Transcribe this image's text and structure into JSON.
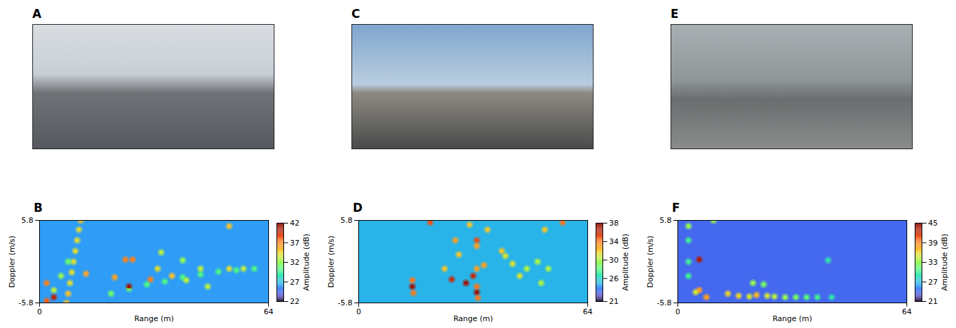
{
  "images": [
    {
      "title": "A"
    },
    {
      "title": "C"
    },
    {
      "title": "E"
    }
  ],
  "chart_data": [
    {
      "type": "heatmap",
      "title": "B",
      "xlabel": "Range (m)",
      "ylabel": "Doppler (m/s)",
      "xlim": [
        0,
        64
      ],
      "xticks": [
        0,
        64
      ],
      "ylim": [
        -5.8,
        5.8
      ],
      "yticks": [
        -5.8,
        5.8
      ],
      "colorbar": {
        "label": "Amplitude (dB)",
        "range": [
          22,
          42
        ],
        "ticks": [
          22,
          27,
          32,
          37,
          42
        ]
      },
      "background": 26,
      "peaks": [
        {
          "range": 11.5,
          "doppler": 5.8,
          "amplitude": 35
        },
        {
          "range": 11,
          "doppler": 4.5,
          "amplitude": 34
        },
        {
          "range": 10.5,
          "doppler": 3,
          "amplitude": 34
        },
        {
          "range": 10,
          "doppler": 1.5,
          "amplitude": 34
        },
        {
          "range": 9.5,
          "doppler": 0,
          "amplitude": 34
        },
        {
          "range": 9,
          "doppler": -1.5,
          "amplitude": 34
        },
        {
          "range": 8.5,
          "doppler": -3,
          "amplitude": 34
        },
        {
          "range": 8,
          "doppler": -4.5,
          "amplitude": 35
        },
        {
          "range": 7.5,
          "doppler": -5.8,
          "amplitude": 35
        },
        {
          "range": 2,
          "doppler": -5.5,
          "amplitude": 38
        },
        {
          "range": 4,
          "doppler": -4,
          "amplitude": 33
        },
        {
          "range": 6,
          "doppler": -2,
          "amplitude": 32
        },
        {
          "range": 8,
          "doppler": 0,
          "amplitude": 31
        },
        {
          "range": 20,
          "doppler": -4.5,
          "amplitude": 31
        },
        {
          "range": 25,
          "doppler": -3.8,
          "amplitude": 31
        },
        {
          "range": 30,
          "doppler": -3.2,
          "amplitude": 30
        },
        {
          "range": 35,
          "doppler": -2.8,
          "amplitude": 30
        },
        {
          "range": 40,
          "doppler": -2.2,
          "amplitude": 30
        },
        {
          "range": 45,
          "doppler": -1.8,
          "amplitude": 30
        },
        {
          "range": 50,
          "doppler": -1.4,
          "amplitude": 30
        },
        {
          "range": 55,
          "doppler": -1.2,
          "amplitude": 30
        },
        {
          "range": 60,
          "doppler": -1,
          "amplitude": 30
        },
        {
          "range": 25,
          "doppler": -3.5,
          "amplitude": 41
        },
        {
          "range": 31,
          "doppler": -2.5,
          "amplitude": 37
        },
        {
          "range": 37,
          "doppler": -2,
          "amplitude": 35
        },
        {
          "range": 45,
          "doppler": -1,
          "amplitude": 33
        },
        {
          "range": 53,
          "doppler": -1,
          "amplitude": 34
        },
        {
          "range": 57,
          "doppler": -1,
          "amplitude": 33
        },
        {
          "range": 26,
          "doppler": 0.3,
          "amplitude": 37
        },
        {
          "range": 24,
          "doppler": 0.3,
          "amplitude": 37
        },
        {
          "range": 34,
          "doppler": 1.3,
          "amplitude": 33
        },
        {
          "range": 21,
          "doppler": -2.2,
          "amplitude": 36
        },
        {
          "range": 13,
          "doppler": -1.7,
          "amplitude": 36
        },
        {
          "range": 53,
          "doppler": 5,
          "amplitude": 35
        },
        {
          "range": 4,
          "doppler": -5,
          "amplitude": 40
        },
        {
          "range": 2,
          "doppler": -3,
          "amplitude": 37
        },
        {
          "range": 33,
          "doppler": -1,
          "amplitude": 34
        },
        {
          "range": 40,
          "doppler": 0.2,
          "amplitude": 32
        },
        {
          "range": 47,
          "doppler": -3.5,
          "amplitude": 33
        },
        {
          "range": 41,
          "doppler": -2.6,
          "amplitude": 33
        }
      ]
    },
    {
      "type": "heatmap",
      "title": "D",
      "xlabel": "Range (m)",
      "ylabel": "Doppler (m/s)",
      "xlim": [
        0,
        64
      ],
      "xticks": [
        0,
        64
      ],
      "ylim": [
        -5.8,
        5.8
      ],
      "yticks": [
        -5.8,
        5.8
      ],
      "colorbar": {
        "label": "Amplitude (dB)",
        "range": [
          21,
          38
        ],
        "ticks": [
          21,
          26,
          30,
          34,
          38
        ]
      },
      "background": 25,
      "peaks": [
        {
          "range": 15,
          "doppler": -3.5,
          "amplitude": 37
        },
        {
          "range": 15,
          "doppler": -2.6,
          "amplitude": 34
        },
        {
          "range": 15.3,
          "doppler": -4.4,
          "amplitude": 34
        },
        {
          "range": 26,
          "doppler": -2.5,
          "amplitude": 36
        },
        {
          "range": 30,
          "doppler": -3,
          "amplitude": 37
        },
        {
          "range": 32,
          "doppler": -2,
          "amplitude": 36
        },
        {
          "range": 33,
          "doppler": -4.3,
          "amplitude": 37
        },
        {
          "range": 33,
          "doppler": -3.5,
          "amplitude": 34
        },
        {
          "range": 33.3,
          "doppler": -5.1,
          "amplitude": 34
        },
        {
          "range": 33,
          "doppler": 3,
          "amplitude": 35
        },
        {
          "range": 33,
          "doppler": 2.2,
          "amplitude": 33
        },
        {
          "range": 35,
          "doppler": -0.5,
          "amplitude": 33
        },
        {
          "range": 33,
          "doppler": -1,
          "amplitude": 33
        },
        {
          "range": 20,
          "doppler": 5.5,
          "amplitude": 35
        },
        {
          "range": 24,
          "doppler": -1,
          "amplitude": 32
        },
        {
          "range": 27,
          "doppler": 3,
          "amplitude": 33
        },
        {
          "range": 40,
          "doppler": 1.5,
          "amplitude": 32
        },
        {
          "range": 41,
          "doppler": 0.8,
          "amplitude": 31
        },
        {
          "range": 43,
          "doppler": -0.3,
          "amplitude": 31
        },
        {
          "range": 47,
          "doppler": -1,
          "amplitude": 30
        },
        {
          "range": 45,
          "doppler": -2,
          "amplitude": 31
        },
        {
          "range": 50,
          "doppler": 0,
          "amplitude": 30
        },
        {
          "range": 51,
          "doppler": -3,
          "amplitude": 30
        },
        {
          "range": 52,
          "doppler": 4.5,
          "amplitude": 32
        },
        {
          "range": 57,
          "doppler": 5.5,
          "amplitude": 34
        },
        {
          "range": 53,
          "doppler": -1,
          "amplitude": 30
        },
        {
          "range": 36,
          "doppler": 4.5,
          "amplitude": 32
        },
        {
          "range": 31,
          "doppler": 5.2,
          "amplitude": 32
        },
        {
          "range": 28,
          "doppler": 1,
          "amplitude": 32
        }
      ]
    },
    {
      "type": "heatmap",
      "title": "F",
      "xlabel": "Range (m)",
      "ylabel": "Doppler (m/s)",
      "xlim": [
        0,
        64
      ],
      "xticks": [
        0,
        64
      ],
      "ylim": [
        -5.8,
        5.8
      ],
      "yticks": [
        -5.8,
        5.8
      ],
      "colorbar": {
        "label": "Amplitude (dB)",
        "range": [
          21,
          45
        ],
        "ticks": [
          21,
          27,
          33,
          39,
          45
        ]
      },
      "background": 24,
      "peaks": [
        {
          "range": 6,
          "doppler": 0.3,
          "amplitude": 43
        },
        {
          "range": 6,
          "doppler": -4,
          "amplitude": 38
        },
        {
          "range": 8,
          "doppler": -5,
          "amplitude": 38
        },
        {
          "range": 5,
          "doppler": -4.3,
          "amplitude": 35
        },
        {
          "range": 3,
          "doppler": 5,
          "amplitude": 33
        },
        {
          "range": 10,
          "doppler": 5.8,
          "amplitude": 33
        },
        {
          "range": 3,
          "doppler": 3,
          "amplitude": 30
        },
        {
          "range": 3,
          "doppler": 0,
          "amplitude": 30
        },
        {
          "range": 3,
          "doppler": -2,
          "amplitude": 30
        },
        {
          "range": 14,
          "doppler": -4.5,
          "amplitude": 36
        },
        {
          "range": 17,
          "doppler": -4.8,
          "amplitude": 36
        },
        {
          "range": 20,
          "doppler": -4.9,
          "amplitude": 35
        },
        {
          "range": 22,
          "doppler": -4.7,
          "amplitude": 37
        },
        {
          "range": 25,
          "doppler": -4.8,
          "amplitude": 35
        },
        {
          "range": 27,
          "doppler": -4.9,
          "amplitude": 34
        },
        {
          "range": 30,
          "doppler": -5,
          "amplitude": 33
        },
        {
          "range": 33,
          "doppler": -5,
          "amplitude": 32
        },
        {
          "range": 36,
          "doppler": -5,
          "amplitude": 31
        },
        {
          "range": 39,
          "doppler": -5,
          "amplitude": 30
        },
        {
          "range": 43,
          "doppler": -5,
          "amplitude": 29
        },
        {
          "range": 21,
          "doppler": -3,
          "amplitude": 33
        },
        {
          "range": 24,
          "doppler": -3.2,
          "amplitude": 32
        },
        {
          "range": 42,
          "doppler": 0.2,
          "amplitude": 29
        }
      ]
    }
  ]
}
